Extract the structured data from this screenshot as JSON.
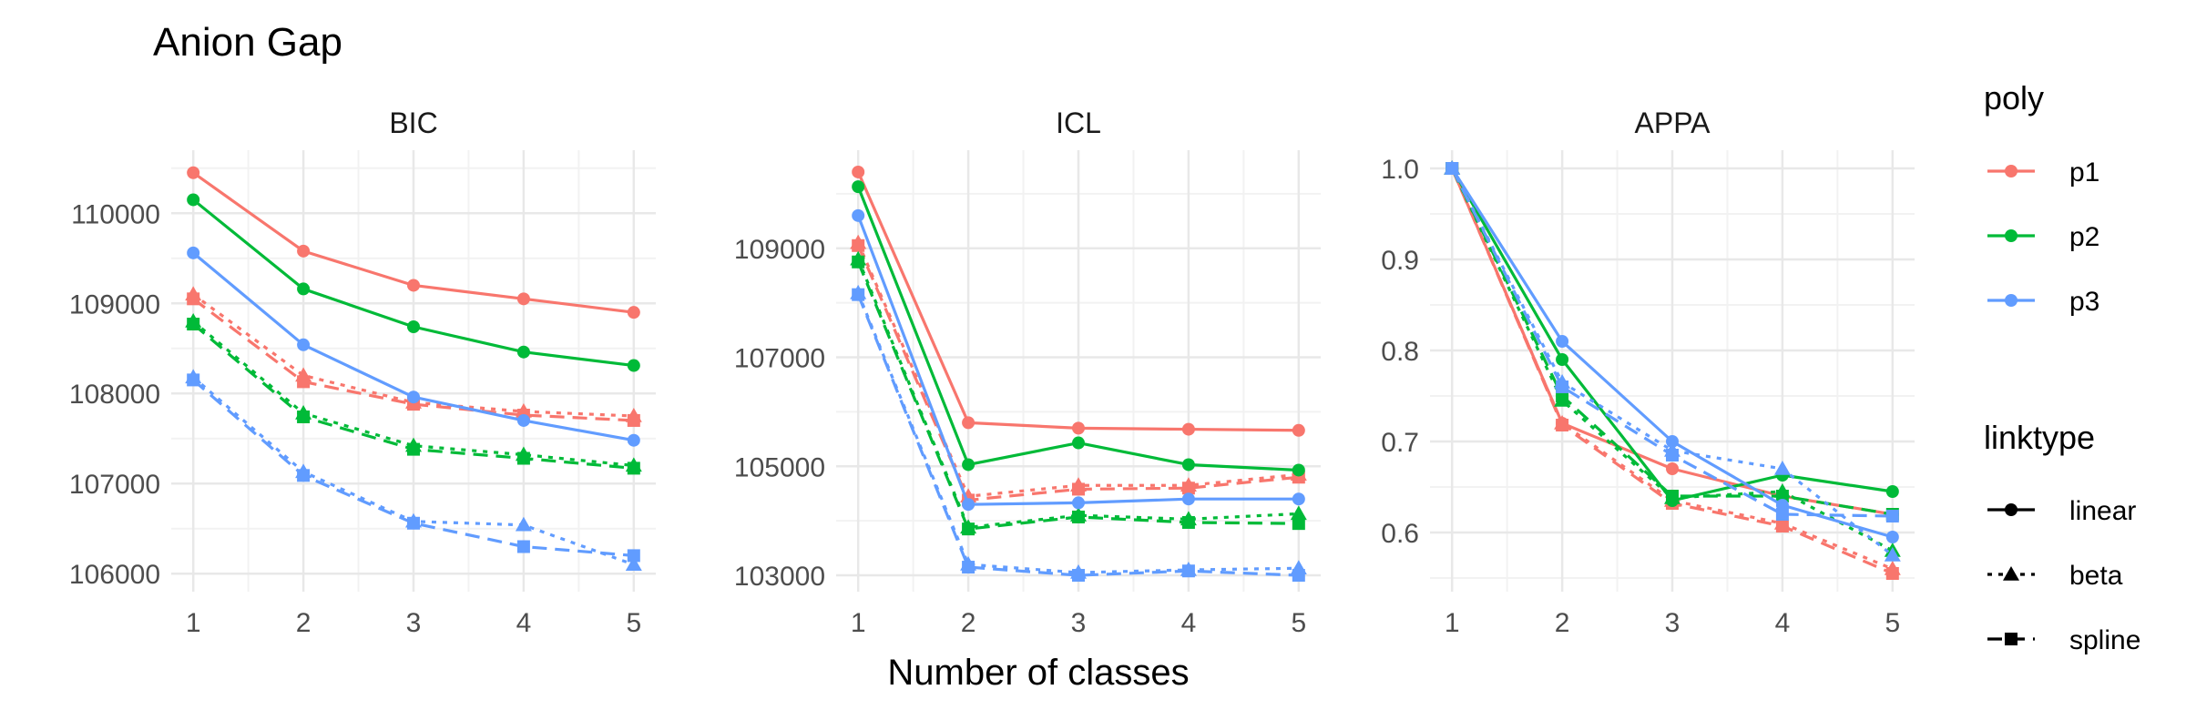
{
  "chart_data": {
    "type": "line",
    "title": "Anion Gap",
    "xlabel": "Number of classes",
    "ylabel": "",
    "grid": true,
    "legend_position": "right",
    "legends": {
      "poly": {
        "title": "poly",
        "entries": [
          {
            "key": "p1",
            "label": "p1",
            "color": "#F8766D"
          },
          {
            "key": "p2",
            "label": "p2",
            "color": "#00BA38"
          },
          {
            "key": "p3",
            "label": "p3",
            "color": "#619CFF"
          }
        ]
      },
      "linktype": {
        "title": "linktype",
        "entries": [
          {
            "key": "linear",
            "label": "linear",
            "marker": "circle",
            "dash": "solid"
          },
          {
            "key": "beta",
            "label": "beta",
            "marker": "triangle",
            "dash": "dotted"
          },
          {
            "key": "spline",
            "label": "spline",
            "marker": "square",
            "dash": "dashed"
          }
        ]
      }
    },
    "panels": [
      {
        "title": "BIC",
        "x": [
          1,
          2,
          3,
          4,
          5
        ],
        "x_ticks": [
          "1",
          "2",
          "3",
          "4",
          "5"
        ],
        "ylim": [
          105800,
          110700
        ],
        "y_ticks": [
          106000,
          107000,
          108000,
          109000,
          110000
        ],
        "y_tick_labels": [
          "106000",
          "107000",
          "108000",
          "109000",
          "110000"
        ],
        "series": [
          {
            "poly": "p1",
            "linktype": "linear",
            "values": [
              110450,
              109580,
              109200,
              109050,
              108900
            ]
          },
          {
            "poly": "p1",
            "linktype": "beta",
            "values": [
              109100,
              108200,
              107900,
              107800,
              107750
            ]
          },
          {
            "poly": "p1",
            "linktype": "spline",
            "values": [
              109050,
              108130,
              107880,
              107760,
              107700
            ]
          },
          {
            "poly": "p2",
            "linktype": "linear",
            "values": [
              110150,
              109160,
              108740,
              108460,
              108310
            ]
          },
          {
            "poly": "p2",
            "linktype": "beta",
            "values": [
              108800,
              107780,
              107420,
              107320,
              107200
            ]
          },
          {
            "poly": "p2",
            "linktype": "spline",
            "values": [
              108770,
              107740,
              107380,
              107280,
              107170
            ]
          },
          {
            "poly": "p3",
            "linktype": "linear",
            "values": [
              109560,
              108540,
              107960,
              107700,
              107480
            ]
          },
          {
            "poly": "p3",
            "linktype": "beta",
            "values": [
              108180,
              107130,
              106580,
              106540,
              106100
            ]
          },
          {
            "poly": "p3",
            "linktype": "spline",
            "values": [
              108150,
              107090,
              106560,
              106300,
              106200
            ]
          }
        ]
      },
      {
        "title": "ICL",
        "x": [
          1,
          2,
          3,
          4,
          5
        ],
        "x_ticks": [
          "1",
          "2",
          "3",
          "4",
          "5"
        ],
        "ylim": [
          102700,
          110800
        ],
        "y_ticks": [
          103000,
          105000,
          107000,
          109000
        ],
        "y_tick_labels": [
          "103000",
          "105000",
          "107000",
          "109000"
        ],
        "series": [
          {
            "poly": "p1",
            "linktype": "linear",
            "values": [
              110400,
              105800,
              105700,
              105680,
              105660
            ]
          },
          {
            "poly": "p1",
            "linktype": "beta",
            "values": [
              109100,
              104450,
              104650,
              104650,
              104850
            ]
          },
          {
            "poly": "p1",
            "linktype": "spline",
            "values": [
              109050,
              104380,
              104580,
              104600,
              104800
            ]
          },
          {
            "poly": "p2",
            "linktype": "linear",
            "values": [
              110130,
              105030,
              105430,
              105030,
              104930
            ]
          },
          {
            "poly": "p2",
            "linktype": "beta",
            "values": [
              108800,
              103880,
              104100,
              104030,
              104130
            ]
          },
          {
            "poly": "p2",
            "linktype": "spline",
            "values": [
              108750,
              103850,
              104070,
              103970,
              103950
            ]
          },
          {
            "poly": "p3",
            "linktype": "linear",
            "values": [
              109600,
              104300,
              104330,
              104400,
              104400
            ]
          },
          {
            "poly": "p3",
            "linktype": "beta",
            "values": [
              108180,
              103200,
              103050,
              103100,
              103130
            ]
          },
          {
            "poly": "p3",
            "linktype": "spline",
            "values": [
              108150,
              103150,
              103000,
              103080,
              103000
            ]
          }
        ]
      },
      {
        "title": "APPA",
        "x": [
          1,
          2,
          3,
          4,
          5
        ],
        "x_ticks": [
          "1",
          "2",
          "3",
          "4",
          "5"
        ],
        "ylim": [
          0.535,
          1.02
        ],
        "y_ticks": [
          0.6,
          0.7,
          0.8,
          0.9,
          1.0
        ],
        "y_tick_labels": [
          "0.6",
          "0.7",
          "0.8",
          "0.9",
          "1.0"
        ],
        "series": [
          {
            "poly": "p1",
            "linktype": "linear",
            "values": [
              1.0,
              0.72,
              0.67,
              0.64,
              0.62
            ]
          },
          {
            "poly": "p1",
            "linktype": "beta",
            "values": [
              1.0,
              0.72,
              0.635,
              0.61,
              0.56
            ]
          },
          {
            "poly": "p1",
            "linktype": "spline",
            "values": [
              1.0,
              0.718,
              0.632,
              0.607,
              0.555
            ]
          },
          {
            "poly": "p2",
            "linktype": "linear",
            "values": [
              1.0,
              0.79,
              0.635,
              0.663,
              0.645
            ]
          },
          {
            "poly": "p2",
            "linktype": "beta",
            "values": [
              1.0,
              0.745,
              0.638,
              0.645,
              0.58
            ]
          },
          {
            "poly": "p2",
            "linktype": "spline",
            "values": [
              1.0,
              0.75,
              0.64,
              0.64,
              0.62
            ]
          },
          {
            "poly": "p3",
            "linktype": "linear",
            "values": [
              1.0,
              0.81,
              0.7,
              0.63,
              0.595
            ]
          },
          {
            "poly": "p3",
            "linktype": "beta",
            "values": [
              1.0,
              0.765,
              0.69,
              0.67,
              0.575
            ]
          },
          {
            "poly": "p3",
            "linktype": "spline",
            "values": [
              1.0,
              0.76,
              0.685,
              0.62,
              0.618
            ]
          }
        ]
      }
    ]
  }
}
